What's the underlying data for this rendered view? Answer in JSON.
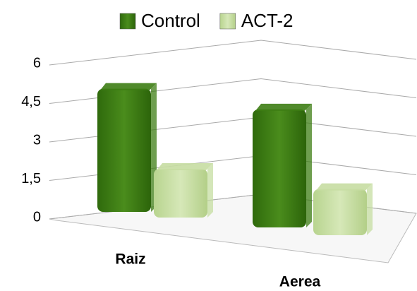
{
  "chart_data": {
    "type": "bar3d",
    "categories": [
      "Raiz",
      "Aerea"
    ],
    "series": [
      {
        "name": "Control",
        "color": "#3d7d14",
        "values": [
          4.8,
          4.6
        ]
      },
      {
        "name": "ACT-2",
        "color": "#c6dda2",
        "values": [
          1.9,
          1.8
        ]
      }
    ],
    "ylim": [
      0,
      6
    ],
    "yticks": [
      0,
      {
        "value": 1.5,
        "label": "1,5"
      },
      3,
      {
        "value": 4.5,
        "label": "4,5"
      },
      6
    ],
    "grid": true,
    "legend": "top"
  }
}
